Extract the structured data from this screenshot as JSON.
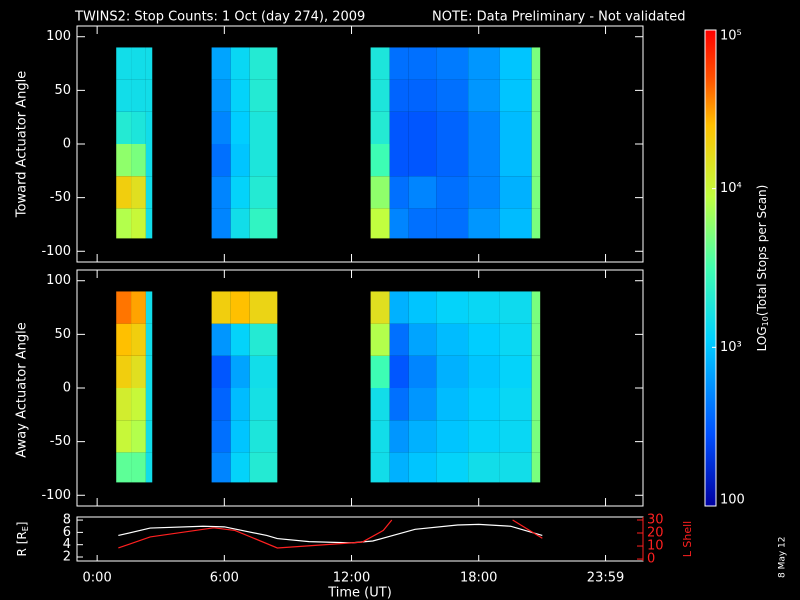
{
  "chart_data": [
    {
      "type": "heatmap",
      "title": "TWINS2: Stop Counts:  1 Oct (day 274), 2009",
      "note": "NOTE: Data Preliminary - Not validated",
      "note_color": "#ff2020",
      "date": "8 May 12",
      "y_label": "Toward Actuator Angle",
      "xlim": [
        -0.95,
        25.75
      ],
      "ylim": [
        -110,
        110
      ],
      "yticks": [
        -100,
        -50,
        0,
        50,
        100
      ],
      "x_edges": [
        0.9,
        1.6,
        2.3,
        2.6,
        5.4,
        6.3,
        7.2,
        8.5,
        12.9,
        13.8,
        14.7,
        16.0,
        17.5,
        19.0,
        20.5,
        20.9
      ],
      "y_edges": [
        -88,
        -60,
        -30,
        0,
        30,
        60,
        90
      ],
      "values": [
        [
          8000,
          10000,
          1500,
          null,
          500,
          1500,
          2500,
          null,
          9000,
          500,
          400,
          400,
          600,
          900,
          5000
        ],
        [
          20000,
          15000,
          1500,
          null,
          500,
          1200,
          2000,
          null,
          6000,
          400,
          500,
          400,
          500,
          800,
          5000
        ],
        [
          6000,
          5000,
          1500,
          null,
          400,
          1000,
          1800,
          null,
          3000,
          300,
          300,
          350,
          500,
          900,
          5000
        ],
        [
          2000,
          1800,
          1500,
          null,
          500,
          1100,
          1800,
          null,
          2000,
          300,
          300,
          350,
          500,
          900,
          5000
        ],
        [
          1500,
          1500,
          1500,
          null,
          600,
          1200,
          2000,
          null,
          1800,
          350,
          350,
          400,
          600,
          1000,
          5000
        ],
        [
          1500,
          1500,
          1500,
          null,
          700,
          1300,
          2000,
          null,
          1800,
          400,
          400,
          450,
          600,
          1000,
          5000
        ]
      ],
      "zlim": [
        100,
        100000
      ],
      "zscale": "log",
      "zticks": [
        100,
        {
          "value": 1000,
          "label": "10³"
        },
        {
          "value": 10000,
          "label": "10⁴"
        },
        {
          "value": 100000,
          "label": "10⁵"
        }
      ],
      "zlabel_parts": [
        "LOG",
        "10",
        "(Total Stops per Scan)"
      ]
    },
    {
      "type": "heatmap",
      "y_label": "Away Actuator Angle",
      "xlim": [
        -0.95,
        25.75
      ],
      "ylim": [
        -110,
        110
      ],
      "yticks": [
        -100,
        -50,
        0,
        50,
        100
      ],
      "x_edges": [
        0.9,
        1.6,
        2.3,
        2.6,
        5.4,
        6.3,
        7.2,
        8.5,
        12.9,
        13.8,
        14.7,
        16.0,
        17.5,
        19.0,
        20.5,
        20.9
      ],
      "y_edges": [
        -88,
        -60,
        -30,
        0,
        30,
        60,
        90
      ],
      "values": [
        [
          4000,
          4000,
          1500,
          null,
          500,
          1200,
          2000,
          null,
          1500,
          800,
          1000,
          1200,
          1500,
          1500,
          5000
        ],
        [
          10000,
          8000,
          1500,
          null,
          400,
          1000,
          1800,
          null,
          1500,
          600,
          800,
          1000,
          1200,
          1300,
          5000
        ],
        [
          12000,
          10000,
          1500,
          null,
          350,
          900,
          1600,
          null,
          1500,
          400,
          600,
          900,
          1100,
          1300,
          5000
        ],
        [
          20000,
          15000,
          1500,
          null,
          300,
          700,
          1500,
          null,
          3000,
          300,
          500,
          800,
          1000,
          1200,
          5000
        ],
        [
          25000,
          20000,
          1500,
          null,
          600,
          1200,
          2000,
          null,
          8000,
          400,
          700,
          900,
          1100,
          1300,
          5000
        ],
        [
          40000,
          30000,
          1500,
          null,
          20000,
          25000,
          18000,
          null,
          15000,
          800,
          1000,
          1200,
          1300,
          1400,
          5000
        ]
      ]
    },
    {
      "type": "line",
      "x_label": "Time (UT)",
      "y_label_parts": [
        "R [R",
        "E",
        "]"
      ],
      "y2_label": "L Shell",
      "y2_color": "#ff2020",
      "xlim": [
        -0.95,
        25.75
      ],
      "xticks": [
        {
          "value": 0,
          "label": "0:00"
        },
        {
          "value": 6,
          "label": "6:00"
        },
        {
          "value": 12,
          "label": "12:00"
        },
        {
          "value": 18,
          "label": "18:00"
        },
        {
          "value": 23.983,
          "label": "23:59"
        }
      ],
      "ylim": [
        1.35,
        8.5
      ],
      "yticks": [
        2,
        4,
        6,
        8
      ],
      "y2lim": [
        -1.5,
        32.3
      ],
      "y2ticks": [
        0,
        10,
        20,
        30
      ],
      "series": [
        {
          "name": "R",
          "color": "#ffffff",
          "x": [
            1,
            2.5,
            5,
            6,
            8,
            8.5,
            10,
            12,
            13,
            15,
            17,
            18,
            19.5,
            21
          ],
          "values": [
            5.5,
            6.7,
            7.0,
            6.9,
            5.5,
            5.0,
            4.5,
            4.3,
            4.6,
            6.5,
            7.2,
            7.3,
            7.0,
            5.5
          ]
        },
        {
          "name": "L Shell",
          "color": "#ff2020",
          "axis": "y2",
          "x": [
            1,
            2.5,
            5.5,
            6.5,
            8.5,
            12.5,
            13.5,
            13.9,
            16,
            19.6,
            21
          ],
          "values": [
            8.5,
            17,
            24,
            22,
            8.5,
            13,
            22,
            30,
            null,
            30,
            16
          ]
        }
      ]
    }
  ]
}
